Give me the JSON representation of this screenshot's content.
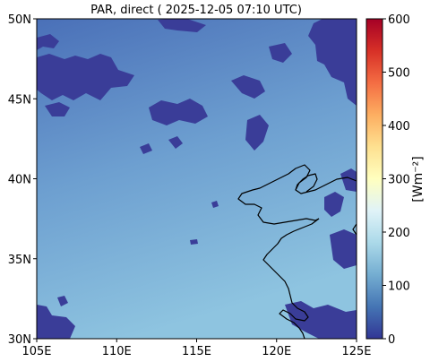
{
  "title": "PAR, direct ( 2025-12-05 07:10 UTC)",
  "map": {
    "lon_range": [
      105,
      125
    ],
    "lat_range": [
      30,
      50
    ],
    "x_ticks": [
      {
        "value": 105,
        "label": "105E"
      },
      {
        "value": 110,
        "label": "110E"
      },
      {
        "value": 115,
        "label": "115E"
      },
      {
        "value": 120,
        "label": "120E"
      },
      {
        "value": 125,
        "label": "125E"
      }
    ],
    "y_ticks": [
      {
        "value": 30,
        "label": "30N"
      },
      {
        "value": 35,
        "label": "35N"
      },
      {
        "value": 40,
        "label": "40N"
      },
      {
        "value": 45,
        "label": "45N"
      },
      {
        "value": 50,
        "label": "50N"
      }
    ],
    "field_colors": {
      "north": "#4a70b8",
      "mid": "#6d9fd0",
      "south": "#8ec4e0",
      "cloud": "#3a3d98",
      "coast": "#000000"
    }
  },
  "colorbar": {
    "label": "[Wm$^{-2}$]",
    "label_display": "[Wm⁻²]",
    "range": [
      0,
      600
    ],
    "ticks": [
      {
        "value": 0,
        "label": "0"
      },
      {
        "value": 100,
        "label": "100"
      },
      {
        "value": 200,
        "label": "200"
      },
      {
        "value": 300,
        "label": "300"
      },
      {
        "value": 400,
        "label": "400"
      },
      {
        "value": 500,
        "label": "500"
      },
      {
        "value": 600,
        "label": "600"
      }
    ],
    "colormap": "RdYlBu_r",
    "stops": [
      "#313695",
      "#4575b4",
      "#74add1",
      "#abd9e9",
      "#e0f3f8",
      "#ffffbf",
      "#fee090",
      "#fdae61",
      "#f46d43",
      "#d73027",
      "#a50026"
    ]
  }
}
